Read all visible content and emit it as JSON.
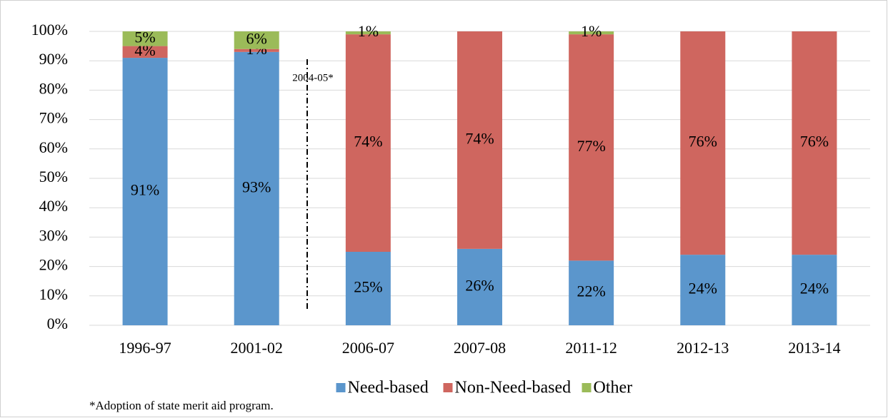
{
  "chart_data": {
    "type": "stacked_bar",
    "categories": [
      "1996-97",
      "2001-02",
      "2006-07",
      "2007-08",
      "2011-12",
      "2012-13",
      "2013-14"
    ],
    "series": [
      {
        "name": "Need-based",
        "color": "#5b96cc",
        "values": [
          91,
          93,
          25,
          26,
          22,
          24,
          24
        ],
        "value_labels": [
          "91%",
          "93%",
          "25%",
          "26%",
          "22%",
          "24%",
          "24%"
        ]
      },
      {
        "name": "Non-Need-based",
        "color": "#cf665f",
        "values": [
          4,
          1,
          74,
          74,
          77,
          76,
          76
        ],
        "value_labels": [
          "4%",
          "1%",
          "74%",
          "74%",
          "77%",
          "76%",
          "76%"
        ]
      },
      {
        "name": "Other",
        "color": "#9bbb59",
        "values": [
          5,
          6,
          1,
          0,
          1,
          0,
          0
        ],
        "value_labels": [
          "5%",
          "6%",
          "1%",
          null,
          "1%",
          null,
          null
        ]
      }
    ],
    "ylim": [
      0,
      100
    ],
    "yticks": [
      {
        "value": 0,
        "label": "0%"
      },
      {
        "value": 10,
        "label": "10%"
      },
      {
        "value": 20,
        "label": "20%"
      },
      {
        "value": 30,
        "label": "30%"
      },
      {
        "value": 40,
        "label": "40%"
      },
      {
        "value": 50,
        "label": "50%"
      },
      {
        "value": 60,
        "label": "60%"
      },
      {
        "value": 70,
        "label": "70%"
      },
      {
        "value": 80,
        "label": "80%"
      },
      {
        "value": 90,
        "label": "90%"
      },
      {
        "value": 100,
        "label": "100%"
      }
    ],
    "grid": true,
    "legend": "bottom",
    "annotations": [
      {
        "text": "2004-05*"
      }
    ],
    "footnote": "*Adoption of state merit aid program."
  }
}
